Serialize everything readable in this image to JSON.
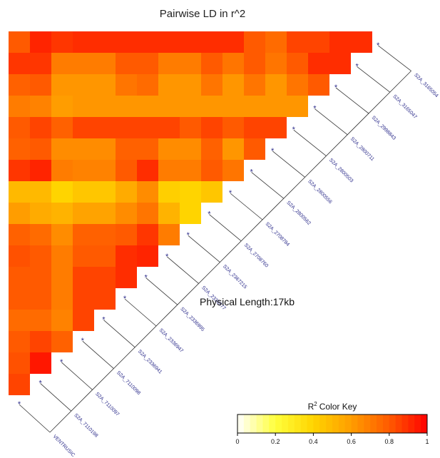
{
  "chart_data": {
    "type": "heatmap",
    "title": "Pairwise LD in r^2",
    "annotation": "Physical Length:17kb",
    "colorbar": {
      "label": "Color Key",
      "superscript": "2",
      "prefix": "R",
      "ticks": [
        "0",
        "0.2",
        "0.4",
        "0.6",
        "0.8",
        "1"
      ],
      "range": [
        0,
        1
      ],
      "colors": [
        "#ffffff",
        "#ffff3c",
        "#ffd400",
        "#ff9d00",
        "#ff5a00",
        "#ff0000"
      ]
    },
    "snps": [
      "VENTRUSIC",
      "S2A_7110198",
      "S2A_7110097",
      "S2A_7110098",
      "S2A_2336941",
      "S2A_2336947",
      "S2A_2336995",
      "S2A_2336977",
      "S2A_2367215",
      "S2A_2708760",
      "S2A_2708784",
      "S2A_2800562",
      "S2A_2800556",
      "S2A_2800503",
      "S2A_2800711",
      "S2A_2998843",
      "S2A_3165047",
      "S2A_3165054"
    ],
    "marker": "*",
    "matrix": [
      [
        0.8,
        0.92,
        0.88,
        0.9,
        0.9,
        0.9,
        0.9,
        0.9,
        0.9,
        0.9,
        0.9,
        0.8,
        0.75,
        0.85,
        0.85,
        0.9,
        0.9
      ],
      [
        0.88,
        0.88,
        0.7,
        0.7,
        0.7,
        0.8,
        0.8,
        0.7,
        0.7,
        0.8,
        0.72,
        0.8,
        0.72,
        0.8,
        0.9,
        0.9
      ],
      [
        0.78,
        0.8,
        0.62,
        0.62,
        0.62,
        0.72,
        0.75,
        0.62,
        0.62,
        0.72,
        0.62,
        0.72,
        0.62,
        0.72,
        0.8
      ],
      [
        0.7,
        0.68,
        0.6,
        0.62,
        0.62,
        0.62,
        0.62,
        0.62,
        0.62,
        0.62,
        0.62,
        0.62,
        0.62,
        0.62
      ],
      [
        0.8,
        0.85,
        0.78,
        0.85,
        0.85,
        0.85,
        0.85,
        0.85,
        0.8,
        0.85,
        0.8,
        0.85,
        0.85
      ],
      [
        0.78,
        0.8,
        0.65,
        0.65,
        0.65,
        0.78,
        0.78,
        0.65,
        0.65,
        0.78,
        0.62,
        0.8
      ],
      [
        0.88,
        0.92,
        0.7,
        0.68,
        0.68,
        0.8,
        0.9,
        0.7,
        0.7,
        0.8,
        0.72
      ],
      [
        0.5,
        0.5,
        0.4,
        0.45,
        0.45,
        0.55,
        0.65,
        0.42,
        0.4,
        0.45
      ],
      [
        0.6,
        0.55,
        0.52,
        0.58,
        0.58,
        0.65,
        0.72,
        0.52,
        0.4
      ],
      [
        0.78,
        0.75,
        0.65,
        0.78,
        0.78,
        0.8,
        0.88,
        0.7
      ],
      [
        0.82,
        0.8,
        0.7,
        0.8,
        0.8,
        0.9,
        0.92
      ],
      [
        0.8,
        0.8,
        0.7,
        0.85,
        0.85,
        0.9
      ],
      [
        0.8,
        0.8,
        0.7,
        0.85,
        0.85
      ],
      [
        0.75,
        0.75,
        0.68,
        0.85
      ],
      [
        0.8,
        0.85,
        0.78
      ],
      [
        0.82,
        0.95
      ],
      [
        0.85
      ]
    ]
  }
}
